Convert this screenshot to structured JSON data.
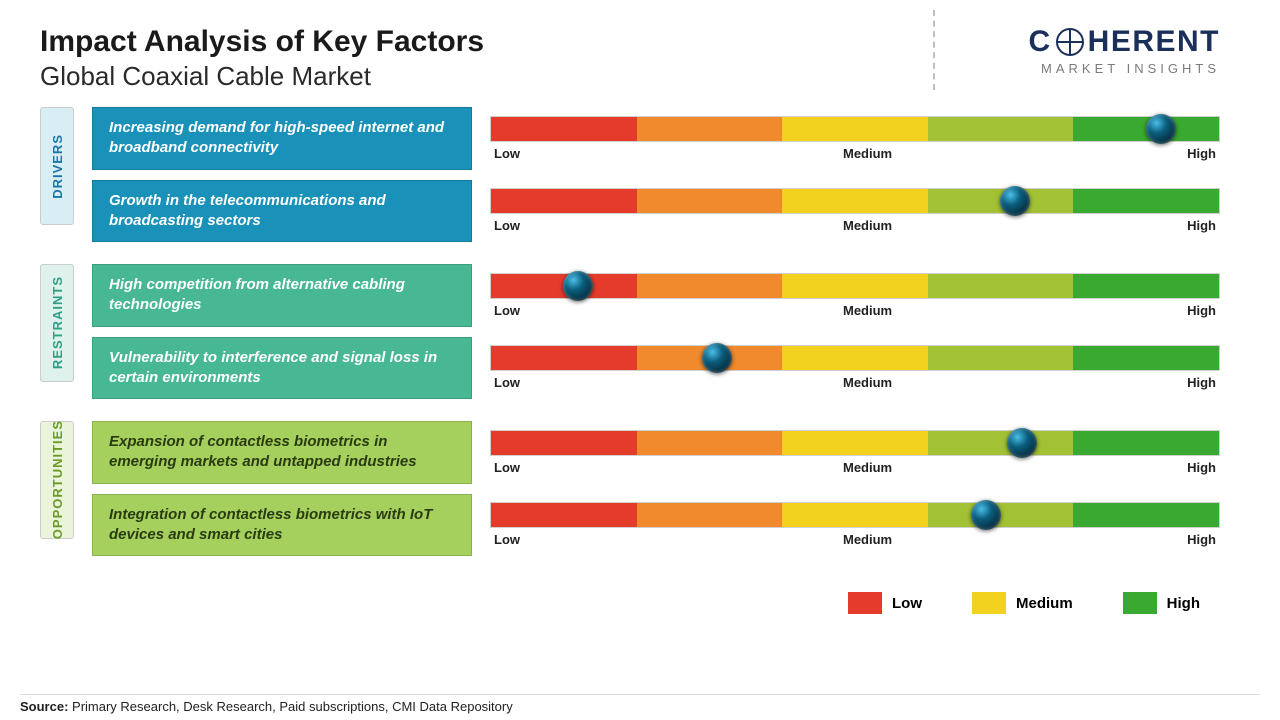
{
  "header": {
    "title": "Impact Analysis of Key Factors",
    "title_fontsize": 30,
    "subtitle": "Global Coaxial Cable Market",
    "subtitle_fontsize": 26,
    "logo_brand_pre": "C",
    "logo_brand_post": "HERENT",
    "logo_brand_fontsize": 30,
    "logo_tagline": "MARKET INSIGHTS",
    "logo_tagline_fontsize": 13
  },
  "colors": {
    "seg1": "#e53b2c",
    "seg2": "#f08a2c",
    "seg3": "#f2d21f",
    "seg4": "#a3c134",
    "seg5": "#3aa931",
    "drivers_tab_bg": "#d9eef4",
    "drivers_tab_text": "#1b76a3",
    "drivers_box": "#1991b8",
    "restraints_tab_bg": "#def1ec",
    "restraints_tab_text": "#2f9e83",
    "restraints_box": "#48b794",
    "opps_tab_bg": "#eaf4da",
    "opps_tab_text": "#6a9a2a",
    "opps_box": "#a5d05e",
    "opps_text": "#2a3b10"
  },
  "scale_labels": {
    "low": "Low",
    "medium": "Medium",
    "high": "High"
  },
  "categories": [
    {
      "label": "DRIVERS",
      "tab_bg_key": "drivers_tab_bg",
      "tab_text_key": "drivers_tab_text",
      "box_bg_key": "drivers_box",
      "box_text": "#ffffff",
      "items": [
        {
          "text": "Increasing demand for high-speed internet and broadband connectivity",
          "value_pct": 92
        },
        {
          "text": "Growth in the telecommunications and broadcasting sectors",
          "value_pct": 72
        }
      ]
    },
    {
      "label": "RESTRAINTS",
      "tab_bg_key": "restraints_tab_bg",
      "tab_text_key": "restraints_tab_text",
      "box_bg_key": "restraints_box",
      "box_text": "#ffffff",
      "items": [
        {
          "text": "High competition from alternative cabling technologies",
          "value_pct": 12
        },
        {
          "text": "Vulnerability to interference and signal loss in certain environments",
          "value_pct": 31
        }
      ]
    },
    {
      "label": "OPPORTUNITIES",
      "tab_bg_key": "opps_tab_bg",
      "tab_text_key": "opps_tab_text",
      "box_bg_key": "opps_box",
      "box_text": "#2a3b10",
      "items": [
        {
          "text": "Expansion of contactless biometrics in emerging markets and untapped industries",
          "value_pct": 73
        },
        {
          "text": "Integration of contactless biometrics with IoT devices and smart cities",
          "value_pct": 68
        }
      ]
    }
  ],
  "legend": [
    {
      "label": "Low",
      "color_key": "seg1"
    },
    {
      "label": "Medium",
      "color_key": "seg3"
    },
    {
      "label": "High",
      "color_key": "seg5"
    }
  ],
  "source": {
    "prefix": "Source:",
    "text": " Primary Research, Desk Research, Paid subscriptions, CMI Data Repository"
  }
}
